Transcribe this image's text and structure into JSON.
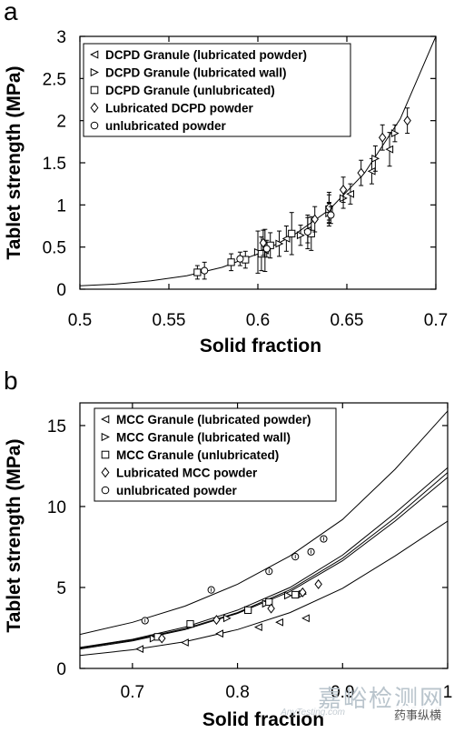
{
  "chart_data": [
    {
      "type": "scatter",
      "panel_label": "a",
      "xlabel": "Solid fraction",
      "ylabel": "Tablet strength (MPa)",
      "xlim": [
        0.5,
        0.7
      ],
      "ylim": [
        0,
        3
      ],
      "xticks": [
        0.5,
        0.55,
        0.6,
        0.65,
        0.7
      ],
      "xtick_labels": [
        "0.5",
        "0.55",
        "0.6",
        "0.65",
        "0.7"
      ],
      "yticks": [
        0,
        0.5,
        1,
        1.5,
        2,
        2.5,
        3
      ],
      "ytick_labels": [
        "0",
        "0.5",
        "1",
        "1.5",
        "2",
        "2.5",
        "3"
      ],
      "legend_position": "top-left",
      "series": [
        {
          "name": "DCPD Granule (lubricated powder)",
          "marker": "triangle-left",
          "points": [
            [
              0.604,
              0.46
            ],
            [
              0.616,
              0.6
            ],
            [
              0.628,
              0.7
            ],
            [
              0.64,
              0.91
            ],
            [
              0.652,
              1.13
            ],
            [
              0.664,
              1.4
            ],
            [
              0.674,
              1.66
            ]
          ],
          "errors": [
            0.25,
            0.15,
            0.15,
            0.12,
            0.12,
            0.15,
            0.2
          ]
        },
        {
          "name": "DCPD Granule (lubricated wall)",
          "marker": "triangle-right",
          "points": [
            [
              0.6,
              0.44
            ],
            [
              0.612,
              0.54
            ],
            [
              0.624,
              0.64
            ],
            [
              0.64,
              0.9
            ],
            [
              0.648,
              1.08
            ],
            [
              0.666,
              1.55
            ],
            [
              0.677,
              1.85
            ]
          ],
          "errors": [
            0.25,
            0.15,
            0.12,
            0.12,
            0.12,
            0.15,
            0.1
          ]
        },
        {
          "name": "DCPD  Granule (unlubricated)",
          "marker": "square",
          "points": [
            [
              0.566,
              0.2
            ],
            [
              0.585,
              0.32
            ],
            [
              0.593,
              0.35
            ],
            [
              0.602,
              0.42
            ],
            [
              0.607,
              0.52
            ],
            [
              0.619,
              0.66
            ],
            [
              0.63,
              0.66
            ],
            [
              0.64,
              0.95
            ]
          ],
          "errors": [
            0.08,
            0.1,
            0.1,
            0.2,
            0.15,
            0.25,
            0.2,
            0.2
          ]
        },
        {
          "name": "Lubricated DCPD powder",
          "marker": "diamond",
          "points": [
            [
              0.603,
              0.55
            ],
            [
              0.632,
              0.83
            ],
            [
              0.64,
              0.97
            ],
            [
              0.648,
              1.18
            ],
            [
              0.658,
              1.38
            ],
            [
              0.67,
              1.8
            ],
            [
              0.684,
              2.0
            ]
          ],
          "errors": [
            0.15,
            0.15,
            0.15,
            0.15,
            0.15,
            0.15,
            0.15
          ]
        },
        {
          "name": "unlubricated powder",
          "marker": "circle",
          "points": [
            [
              0.57,
              0.22
            ],
            [
              0.59,
              0.36
            ],
            [
              0.605,
              0.48
            ],
            [
              0.628,
              0.68
            ],
            [
              0.641,
              0.88
            ]
          ],
          "errors": [
            0.1,
            0.08,
            0.1,
            0.2,
            0.1
          ]
        }
      ],
      "fits": [
        {
          "style": "solid",
          "points": [
            [
              0.5,
              0.04
            ],
            [
              0.52,
              0.06
            ],
            [
              0.54,
              0.1
            ],
            [
              0.56,
              0.16
            ],
            [
              0.58,
              0.26
            ],
            [
              0.6,
              0.42
            ],
            [
              0.62,
              0.64
            ],
            [
              0.64,
              0.94
            ],
            [
              0.66,
              1.38
            ],
            [
              0.68,
              2.02
            ],
            [
              0.7,
              3.0
            ]
          ]
        }
      ]
    },
    {
      "type": "scatter",
      "panel_label": "b",
      "xlabel": "Solid fraction",
      "ylabel": "Tablet strength (MPa)",
      "xlim": [
        0.65,
        1.0
      ],
      "ylim": [
        0,
        16.4
      ],
      "xticks": [
        0.7,
        0.8,
        0.9,
        1.0
      ],
      "xtick_labels": [
        "0.7",
        "0.8",
        "0.9",
        "1"
      ],
      "yticks": [
        0,
        5,
        10,
        15
      ],
      "ytick_labels": [
        "0",
        "5",
        "10",
        "15"
      ],
      "legend_position": "top-left",
      "series": [
        {
          "name": "MCC Granule (lubricated powder)",
          "marker": "triangle-left",
          "points": [
            [
              0.707,
              1.2
            ],
            [
              0.75,
              1.6
            ],
            [
              0.783,
              2.15
            ],
            [
              0.82,
              2.55
            ],
            [
              0.84,
              2.85
            ],
            [
              0.865,
              3.1
            ]
          ]
        },
        {
          "name": "MCC Granule (lubricated wall)",
          "marker": "triangle-right",
          "points": [
            [
              0.72,
              1.85
            ],
            [
              0.756,
              2.65
            ],
            [
              0.79,
              3.1
            ],
            [
              0.81,
              3.6
            ],
            [
              0.827,
              4.0
            ],
            [
              0.848,
              4.5
            ],
            [
              0.862,
              4.6
            ]
          ]
        },
        {
          "name": "MCC Granule (unlubricated)",
          "marker": "square",
          "points": [
            [
              0.724,
              1.95
            ],
            [
              0.755,
              2.75
            ],
            [
              0.81,
              3.6
            ],
            [
              0.83,
              4.1
            ],
            [
              0.855,
              4.55
            ]
          ]
        },
        {
          "name": "Lubricated MCC powder",
          "marker": "diamond",
          "points": [
            [
              0.728,
              1.85
            ],
            [
              0.78,
              3.0
            ],
            [
              0.832,
              3.7
            ],
            [
              0.862,
              4.7
            ],
            [
              0.877,
              5.2
            ]
          ]
        },
        {
          "name": "unlubricated powder",
          "marker": "circle",
          "points": [
            [
              0.712,
              2.95
            ],
            [
              0.775,
              4.85
            ],
            [
              0.83,
              6.0
            ],
            [
              0.855,
              6.9
            ],
            [
              0.87,
              7.2
            ],
            [
              0.882,
              8.0
            ]
          ]
        }
      ],
      "fits": [
        {
          "style": "solid",
          "points": [
            [
              0.65,
              0.8
            ],
            [
              0.7,
              1.15
            ],
            [
              0.75,
              1.65
            ],
            [
              0.8,
              2.4
            ],
            [
              0.85,
              3.45
            ],
            [
              0.9,
              4.95
            ],
            [
              0.95,
              6.95
            ],
            [
              1.0,
              9.1
            ]
          ]
        },
        {
          "style": "solid",
          "points": [
            [
              0.65,
              1.25
            ],
            [
              0.7,
              1.75
            ],
            [
              0.75,
              2.45
            ],
            [
              0.8,
              3.45
            ],
            [
              0.85,
              4.85
            ],
            [
              0.9,
              6.8
            ],
            [
              0.95,
              9.3
            ],
            [
              1.0,
              12.1
            ]
          ]
        },
        {
          "style": "solid",
          "points": [
            [
              0.65,
              1.3
            ],
            [
              0.7,
              1.8
            ],
            [
              0.75,
              2.55
            ],
            [
              0.8,
              3.6
            ],
            [
              0.85,
              5.0
            ],
            [
              0.9,
              7.0
            ],
            [
              0.95,
              9.6
            ],
            [
              1.0,
              12.4
            ]
          ]
        },
        {
          "style": "solid",
          "points": [
            [
              0.65,
              1.2
            ],
            [
              0.7,
              1.7
            ],
            [
              0.75,
              2.4
            ],
            [
              0.8,
              3.4
            ],
            [
              0.85,
              4.75
            ],
            [
              0.9,
              6.65
            ],
            [
              0.95,
              9.1
            ],
            [
              1.0,
              11.8
            ]
          ]
        },
        {
          "style": "solid",
          "points": [
            [
              0.65,
              2.1
            ],
            [
              0.7,
              2.85
            ],
            [
              0.75,
              3.85
            ],
            [
              0.8,
              5.2
            ],
            [
              0.85,
              6.95
            ],
            [
              0.9,
              9.2
            ],
            [
              0.95,
              12.3
            ],
            [
              1.0,
              15.9
            ]
          ]
        }
      ]
    }
  ],
  "watermark": {
    "title": "嘉峪检测网",
    "subtitle": "AnyTesting.com",
    "account": "药事纵横"
  }
}
